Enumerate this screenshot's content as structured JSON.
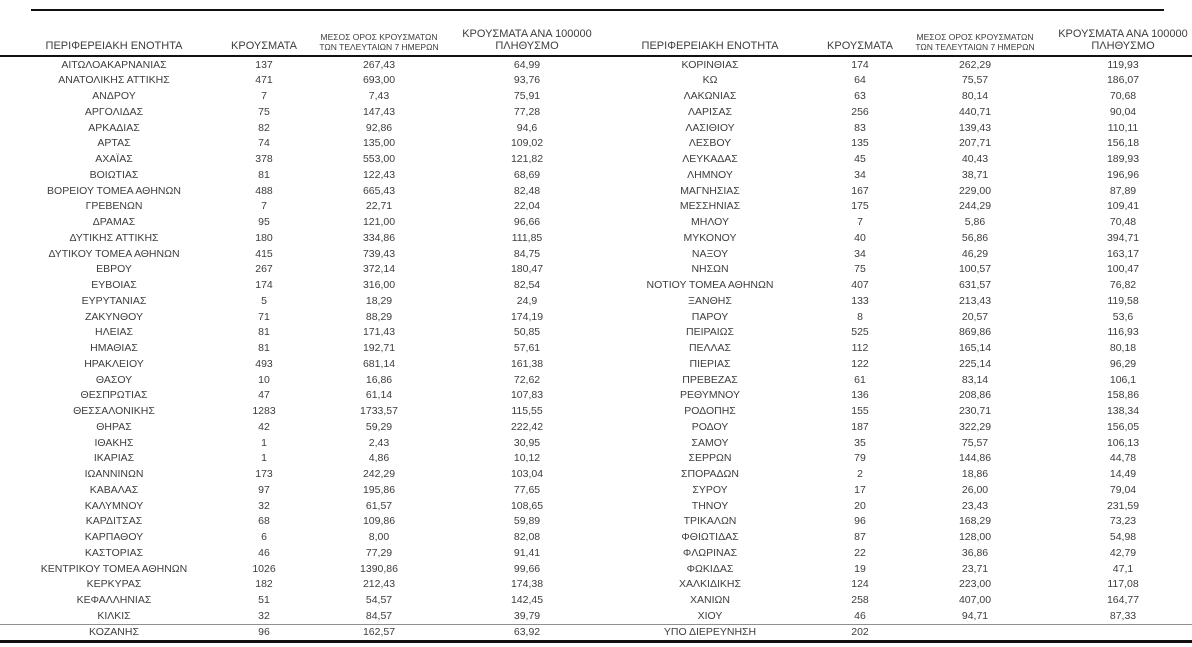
{
  "page": {
    "background": "#ffffff",
    "text_color": "#3d3d3d",
    "rule_color": "#111111"
  },
  "headers": {
    "region": "ΠΕΡΙΦΕΡΕΙΑΚΗ ΕΝΟΤΗΤΑ",
    "cases": "ΚΡΟΥΣΜΑΤΑ",
    "avg7_lines": [
      "ΜΕΣΟΣ ΟΡΟΣ ΚΡΟΥΣΜΑΤΩΝ",
      "ΤΩΝ ΤΕΛΕΥΤΑΙΩΝ 7 ΗΜΕΡΩΝ"
    ],
    "per100k_lines": [
      "ΚΡΟΥΣΜΑΤΑ ΑΝΑ 100000",
      "ΠΛΗΘΥΣΜΟ"
    ]
  },
  "left_rows": [
    [
      "ΑΙΤΩΛΟΑΚΑΡΝΑΝΙΑΣ",
      "137",
      "267,43",
      "64,99"
    ],
    [
      "ΑΝΑΤΟΛΙΚΗΣ ΑΤΤΙΚΗΣ",
      "471",
      "693,00",
      "93,76"
    ],
    [
      "ΑΝΔΡΟΥ",
      "7",
      "7,43",
      "75,91"
    ],
    [
      "ΑΡΓΟΛΙΔΑΣ",
      "75",
      "147,43",
      "77,28"
    ],
    [
      "ΑΡΚΑΔΙΑΣ",
      "82",
      "92,86",
      "94,6"
    ],
    [
      "ΑΡΤΑΣ",
      "74",
      "135,00",
      "109,02"
    ],
    [
      "ΑΧΑΪΑΣ",
      "378",
      "553,00",
      "121,82"
    ],
    [
      "ΒΟΙΩΤΙΑΣ",
      "81",
      "122,43",
      "68,69"
    ],
    [
      "ΒΟΡΕΙΟΥ ΤΟΜΕΑ ΑΘΗΝΩΝ",
      "488",
      "665,43",
      "82,48"
    ],
    [
      "ΓΡΕΒΕΝΩΝ",
      "7",
      "22,71",
      "22,04"
    ],
    [
      "ΔΡΑΜΑΣ",
      "95",
      "121,00",
      "96,66"
    ],
    [
      "ΔΥΤΙΚΗΣ ΑΤΤΙΚΗΣ",
      "180",
      "334,86",
      "111,85"
    ],
    [
      "ΔΥΤΙΚΟΥ ΤΟΜΕΑ ΑΘΗΝΩΝ",
      "415",
      "739,43",
      "84,75"
    ],
    [
      "ΕΒΡΟΥ",
      "267",
      "372,14",
      "180,47"
    ],
    [
      "ΕΥΒΟΙΑΣ",
      "174",
      "316,00",
      "82,54"
    ],
    [
      "ΕΥΡΥΤΑΝΙΑΣ",
      "5",
      "18,29",
      "24,9"
    ],
    [
      "ΖΑΚΥΝΘΟΥ",
      "71",
      "88,29",
      "174,19"
    ],
    [
      "ΗΛΕΙΑΣ",
      "81",
      "171,43",
      "50,85"
    ],
    [
      "ΗΜΑΘΙΑΣ",
      "81",
      "192,71",
      "57,61"
    ],
    [
      "ΗΡΑΚΛΕΙΟΥ",
      "493",
      "681,14",
      "161,38"
    ],
    [
      "ΘΑΣΟΥ",
      "10",
      "16,86",
      "72,62"
    ],
    [
      "ΘΕΣΠΡΩΤΙΑΣ",
      "47",
      "61,14",
      "107,83"
    ],
    [
      "ΘΕΣΣΑΛΟΝΙΚΗΣ",
      "1283",
      "1733,57",
      "115,55"
    ],
    [
      "ΘΗΡΑΣ",
      "42",
      "59,29",
      "222,42"
    ],
    [
      "ΙΘΑΚΗΣ",
      "1",
      "2,43",
      "30,95"
    ],
    [
      "ΙΚΑΡΙΑΣ",
      "1",
      "4,86",
      "10,12"
    ],
    [
      "ΙΩΑΝΝΙΝΩΝ",
      "173",
      "242,29",
      "103,04"
    ],
    [
      "ΚΑΒΑΛΑΣ",
      "97",
      "195,86",
      "77,65"
    ],
    [
      "ΚΑΛΥΜΝΟΥ",
      "32",
      "61,57",
      "108,65"
    ],
    [
      "ΚΑΡΔΙΤΣΑΣ",
      "68",
      "109,86",
      "59,89"
    ],
    [
      "ΚΑΡΠΑΘΟΥ",
      "6",
      "8,00",
      "82,08"
    ],
    [
      "ΚΑΣΤΟΡΙΑΣ",
      "46",
      "77,29",
      "91,41"
    ],
    [
      "ΚΕΝΤΡΙΚΟΥ ΤΟΜΕΑ ΑΘΗΝΩΝ",
      "1026",
      "1390,86",
      "99,66"
    ],
    [
      "ΚΕΡΚΥΡΑΣ",
      "182",
      "212,43",
      "174,38"
    ],
    [
      "ΚΕΦΑΛΛΗΝΙΑΣ",
      "51",
      "54,57",
      "142,45"
    ],
    [
      "ΚΙΛΚΙΣ",
      "32",
      "84,57",
      "39,79"
    ],
    [
      "ΚΟΖΑΝΗΣ",
      "96",
      "162,57",
      "63,92"
    ]
  ],
  "right_rows": [
    [
      "ΚΟΡΙΝΘΙΑΣ",
      "174",
      "262,29",
      "119,93"
    ],
    [
      "ΚΩ",
      "64",
      "75,57",
      "186,07"
    ],
    [
      "ΛΑΚΩΝΙΑΣ",
      "63",
      "80,14",
      "70,68"
    ],
    [
      "ΛΑΡΙΣΑΣ",
      "256",
      "440,71",
      "90,04"
    ],
    [
      "ΛΑΣΙΘΙΟΥ",
      "83",
      "139,43",
      "110,11"
    ],
    [
      "ΛΕΣΒΟΥ",
      "135",
      "207,71",
      "156,18"
    ],
    [
      "ΛΕΥΚΑΔΑΣ",
      "45",
      "40,43",
      "189,93"
    ],
    [
      "ΛΗΜΝΟΥ",
      "34",
      "38,71",
      "196,96"
    ],
    [
      "ΜΑΓΝΗΣΙΑΣ",
      "167",
      "229,00",
      "87,89"
    ],
    [
      "ΜΕΣΣΗΝΙΑΣ",
      "175",
      "244,29",
      "109,41"
    ],
    [
      "ΜΗΛΟΥ",
      "7",
      "5,86",
      "70,48"
    ],
    [
      "ΜΥΚΟΝΟΥ",
      "40",
      "56,86",
      "394,71"
    ],
    [
      "ΝΑΞΟΥ",
      "34",
      "46,29",
      "163,17"
    ],
    [
      "ΝΗΣΩΝ",
      "75",
      "100,57",
      "100,47"
    ],
    [
      "ΝΟΤΙΟΥ ΤΟΜΕΑ ΑΘΗΝΩΝ",
      "407",
      "631,57",
      "76,82"
    ],
    [
      "ΞΑΝΘΗΣ",
      "133",
      "213,43",
      "119,58"
    ],
    [
      "ΠΑΡΟΥ",
      "8",
      "20,57",
      "53,6"
    ],
    [
      "ΠΕΙΡΑΙΩΣ",
      "525",
      "869,86",
      "116,93"
    ],
    [
      "ΠΕΛΛΑΣ",
      "112",
      "165,14",
      "80,18"
    ],
    [
      "ΠΙΕΡΙΑΣ",
      "122",
      "225,14",
      "96,29"
    ],
    [
      "ΠΡΕΒΕΖΑΣ",
      "61",
      "83,14",
      "106,1"
    ],
    [
      "ΡΕΘΥΜΝΟΥ",
      "136",
      "208,86",
      "158,86"
    ],
    [
      "ΡΟΔΟΠΗΣ",
      "155",
      "230,71",
      "138,34"
    ],
    [
      "ΡΟΔΟΥ",
      "187",
      "322,29",
      "156,05"
    ],
    [
      "ΣΑΜΟΥ",
      "35",
      "75,57",
      "106,13"
    ],
    [
      "ΣΕΡΡΩΝ",
      "79",
      "144,86",
      "44,78"
    ],
    [
      "ΣΠΟΡΑΔΩΝ",
      "2",
      "18,86",
      "14,49"
    ],
    [
      "ΣΥΡΟΥ",
      "17",
      "26,00",
      "79,04"
    ],
    [
      "ΤΗΝΟΥ",
      "20",
      "23,43",
      "231,59"
    ],
    [
      "ΤΡΙΚΑΛΩΝ",
      "96",
      "168,29",
      "73,23"
    ],
    [
      "ΦΘΙΩΤΙΔΑΣ",
      "87",
      "128,00",
      "54,98"
    ],
    [
      "ΦΛΩΡΙΝΑΣ",
      "22",
      "36,86",
      "42,79"
    ],
    [
      "ΦΩΚΙΔΑΣ",
      "19",
      "23,71",
      "47,1"
    ],
    [
      "ΧΑΛΚΙΔΙΚΗΣ",
      "124",
      "223,00",
      "117,08"
    ],
    [
      "ΧΑΝΙΩΝ",
      "258",
      "407,00",
      "164,77"
    ],
    [
      "ΧΙΟΥ",
      "46",
      "94,71",
      "87,33"
    ],
    [
      "ΥΠΟ ΔΙΕΡΕΥΝΗΣΗ",
      "202",
      "",
      ""
    ]
  ]
}
